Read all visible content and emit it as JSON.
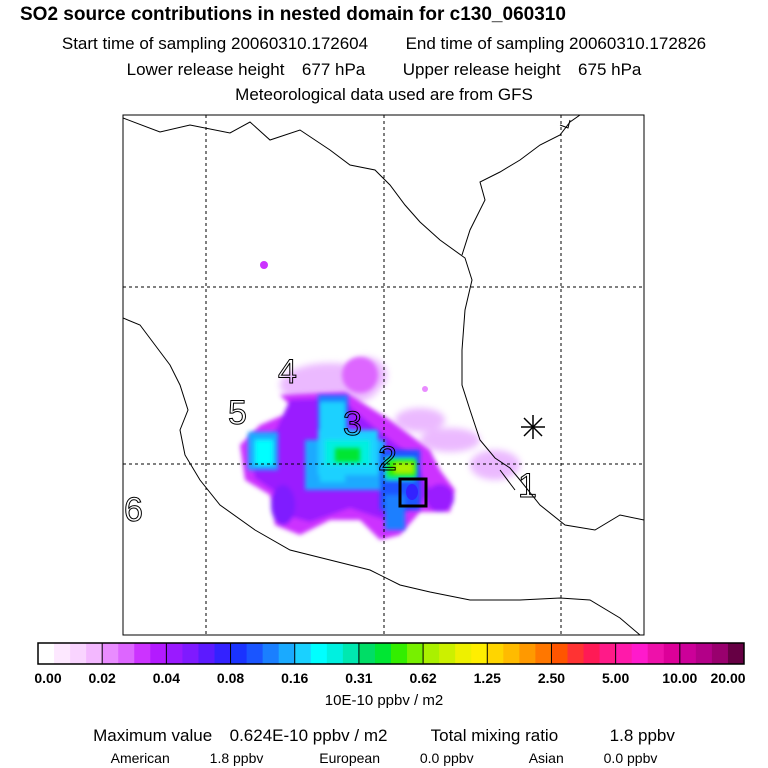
{
  "header": {
    "title": "SO2 source contributions in nested domain for c130_060310",
    "start_label": "Start time of sampling",
    "start_value": "20060310.172604",
    "end_label": "End time of sampling",
    "end_value": "20060310.172826",
    "lower_label": "Lower release height",
    "lower_value": "677 hPa",
    "upper_label": "Upper release height",
    "upper_value": "675 hPa",
    "met_note": "Meteorological data used are from GFS"
  },
  "map": {
    "region_labels": [
      "1",
      "4",
      "5",
      "3",
      "2",
      "6"
    ],
    "marker": "star",
    "colors": {
      "frame": "#000000",
      "coast": "#000000",
      "grid": "#000000"
    }
  },
  "colorbar": {
    "tick_labels": [
      "0.00",
      "0.02",
      "0.04",
      "0.08",
      "0.16",
      "0.31",
      "0.62",
      "1.25",
      "2.50",
      "5.00",
      "10.00",
      "20.00"
    ],
    "units": "10E-10 ppbv / m2",
    "colors": [
      [
        "#ffffff",
        "#fde8ff",
        "#f9d4ff",
        "#f3b8ff"
      ],
      [
        "#e98cff",
        "#dd66ff",
        "#cc33ff",
        "#b31aff"
      ],
      [
        "#9a1aff",
        "#7f1aff",
        "#5c1aff",
        "#3322ff"
      ],
      [
        "#1a33ff",
        "#1a55ff",
        "#1a7fff",
        "#1aaaff"
      ],
      [
        "#1ad1ff",
        "#00ffff",
        "#00f0e0",
        "#00e8b0"
      ],
      [
        "#00dd66",
        "#00e633",
        "#33ee00",
        "#77f000"
      ],
      [
        "#aaf000",
        "#ccf000",
        "#eef000",
        "#ffee00"
      ],
      [
        "#ffd500",
        "#ffbb00",
        "#ff9900",
        "#ff7700"
      ],
      [
        "#ff5500",
        "#ff3333",
        "#ff1a55",
        "#ff1a88"
      ],
      [
        "#ff1aaa",
        "#ff1acc",
        "#ee11aa",
        "#dd0099"
      ],
      [
        "#cc0099",
        "#b30088",
        "#99006e",
        "#660044"
      ]
    ]
  },
  "summary": {
    "max_label": "Maximum value",
    "max_value": "0.624E-10 ppbv / m2",
    "total_label": "Total mixing ratio",
    "total_value": "1.8 ppbv"
  },
  "regions": [
    {
      "name": "American",
      "value": "1.8 ppbv"
    },
    {
      "name": "European",
      "value": "0.0 ppbv"
    },
    {
      "name": "Asian",
      "value": "0.0 ppbv"
    }
  ],
  "chart_data": {
    "type": "heatmap",
    "title": "SO2 source contributions in nested domain for c130_060310",
    "colorbar_levels": [
      0.0,
      0.02,
      0.04,
      0.08,
      0.16,
      0.31,
      0.62,
      1.25,
      2.5,
      5.0,
      10.0,
      20.0
    ],
    "colorbar_label": "10E-10 ppbv / m2",
    "max_value": 0.624,
    "grid": true
  }
}
